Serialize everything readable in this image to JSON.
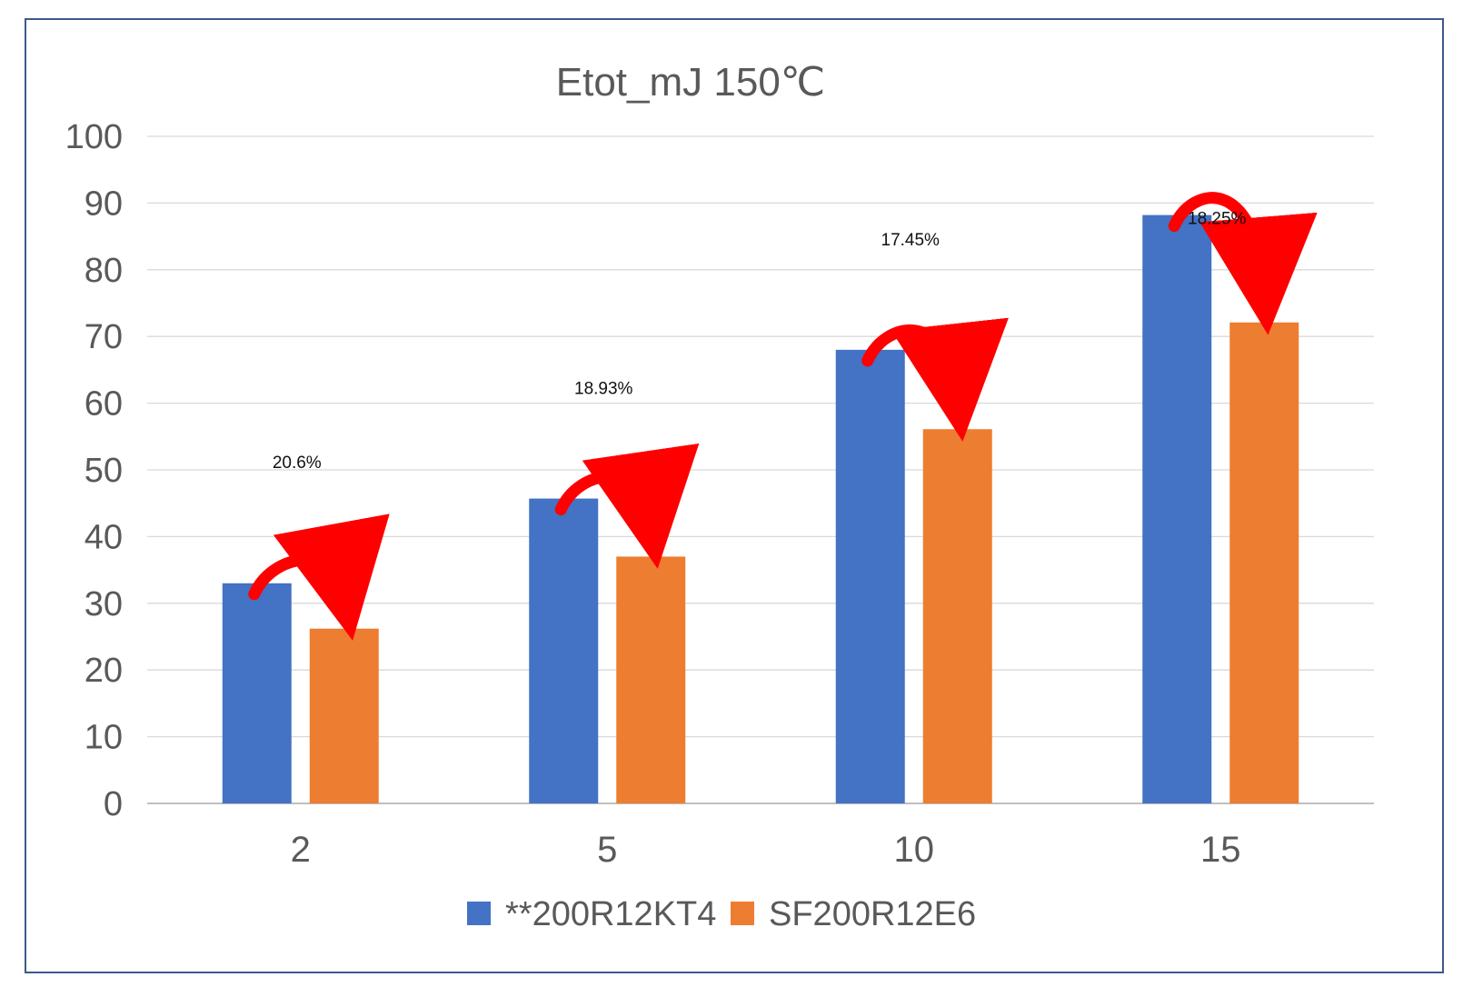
{
  "chart_data": {
    "type": "bar",
    "title": "Etot_mJ  150℃",
    "categories": [
      "2",
      "5",
      "10",
      "15"
    ],
    "series": [
      {
        "name": "**200R12KT4",
        "values": [
          33,
          45.7,
          68,
          88.2
        ],
        "color": "#4472C4"
      },
      {
        "name": "SF200R12E6",
        "values": [
          26.2,
          37,
          56.1,
          72.1
        ],
        "color": "#ED7D31"
      }
    ],
    "annotations": [
      "20.6%",
      "18.93%",
      "17.45%",
      "18.25%"
    ],
    "annotation_arrow_color": "#FF0000",
    "ylim": [
      0,
      100
    ],
    "yticks": [
      "0",
      "10",
      "20",
      "30",
      "40",
      "50",
      "60",
      "70",
      "80",
      "90",
      "100"
    ],
    "grid": true,
    "legend": "bottom"
  }
}
